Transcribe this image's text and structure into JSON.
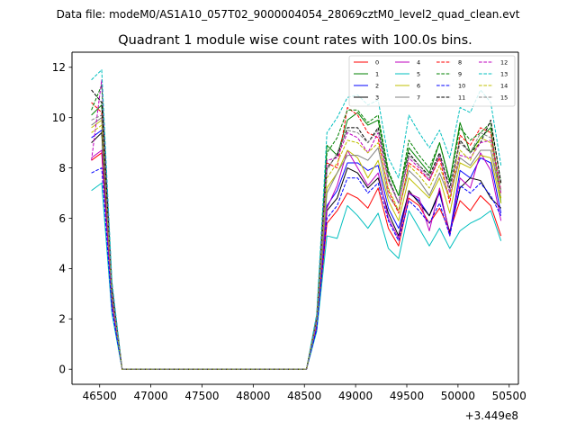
{
  "page": {
    "suptitle": "Data file: modeM0/AS1A10_057T02_9000004054_28069cztM0_level2_quad_clean.evt"
  },
  "chart_data": {
    "type": "line",
    "title": "Quadrant 1 module wise count rates with 100.0s bins.",
    "xlabel": "",
    "ylabel": "",
    "x_offset_label": "+3.449e8",
    "xlim": [
      46230,
      50590
    ],
    "ylim": [
      -0.6,
      12.6
    ],
    "x_ticks": [
      46500,
      47000,
      47500,
      48000,
      48500,
      49000,
      49500,
      50000,
      50500
    ],
    "y_ticks": [
      0,
      2,
      4,
      6,
      8,
      10,
      12
    ],
    "grid": false,
    "legend_position": "top-right",
    "legend_columns": 4,
    "x": [
      46420,
      46520,
      46620,
      46720,
      46820,
      46920,
      47020,
      47120,
      47220,
      47320,
      47420,
      47520,
      47620,
      47720,
      47820,
      47920,
      48020,
      48120,
      48220,
      48320,
      48420,
      48520,
      48620,
      48720,
      48820,
      48920,
      49020,
      49120,
      49220,
      49320,
      49420,
      49520,
      49620,
      49720,
      49820,
      49920,
      50020,
      50120,
      50220,
      50320,
      50420
    ],
    "series": [
      {
        "name": "0",
        "color": "#ff0000",
        "dash": "solid",
        "values": [
          8.3,
          8.6,
          2.6,
          0,
          0,
          0,
          0,
          0,
          0,
          0,
          0,
          0,
          0,
          0,
          0,
          0,
          0,
          0,
          0,
          0,
          0,
          0,
          1.6,
          5.8,
          6.3,
          7.0,
          6.8,
          6.4,
          7.2,
          5.6,
          4.9,
          6.8,
          6.5,
          5.8,
          6.4,
          5.5,
          6.7,
          6.3,
          6.9,
          6.5,
          5.3
        ]
      },
      {
        "name": "1",
        "color": "#008000",
        "dash": "solid",
        "values": [
          10.1,
          10.5,
          3.1,
          0,
          0,
          0,
          0,
          0,
          0,
          0,
          0,
          0,
          0,
          0,
          0,
          0,
          0,
          0,
          0,
          0,
          0,
          0,
          2.0,
          8.9,
          8.5,
          9.9,
          10.2,
          9.7,
          9.9,
          7.8,
          6.9,
          8.8,
          8.3,
          7.8,
          9.0,
          7.5,
          9.8,
          8.6,
          9.2,
          9.6,
          6.6
        ]
      },
      {
        "name": "2",
        "color": "#0000ff",
        "dash": "solid",
        "values": [
          9.2,
          9.5,
          2.8,
          0,
          0,
          0,
          0,
          0,
          0,
          0,
          0,
          0,
          0,
          0,
          0,
          0,
          0,
          0,
          0,
          0,
          0,
          0,
          1.8,
          6.5,
          7.1,
          8.2,
          8.2,
          7.9,
          8.1,
          6.4,
          5.6,
          7.0,
          6.7,
          6.1,
          7.0,
          5.4,
          7.9,
          7.6,
          8.4,
          8.2,
          6.2
        ]
      },
      {
        "name": "3",
        "color": "#000000",
        "dash": "solid",
        "values": [
          9.0,
          9.4,
          2.7,
          0,
          0,
          0,
          0,
          0,
          0,
          0,
          0,
          0,
          0,
          0,
          0,
          0,
          0,
          0,
          0,
          0,
          0,
          0,
          1.7,
          6.3,
          6.8,
          8.0,
          7.8,
          7.2,
          7.6,
          6.2,
          5.3,
          7.1,
          6.6,
          6.1,
          7.1,
          5.4,
          7.2,
          7.6,
          7.5,
          6.8,
          6.4
        ]
      },
      {
        "name": "4",
        "color": "#bf00bf",
        "dash": "solid",
        "values": [
          8.4,
          8.7,
          2.6,
          0,
          0,
          0,
          0,
          0,
          0,
          0,
          0,
          0,
          0,
          0,
          0,
          0,
          0,
          0,
          0,
          0,
          0,
          0,
          1.7,
          6.4,
          7.3,
          8.7,
          8.0,
          7.3,
          7.8,
          6.0,
          5.2,
          7.0,
          6.8,
          5.5,
          7.2,
          5.3,
          7.6,
          7.2,
          8.6,
          7.9,
          5.9
        ]
      },
      {
        "name": "5",
        "color": "#00bfbf",
        "dash": "solid",
        "values": [
          7.1,
          7.4,
          2.2,
          0,
          0,
          0,
          0,
          0,
          0,
          0,
          0,
          0,
          0,
          0,
          0,
          0,
          0,
          0,
          0,
          0,
          0,
          0,
          1.5,
          5.3,
          5.2,
          6.5,
          6.1,
          5.6,
          6.2,
          4.8,
          4.4,
          6.3,
          5.6,
          4.9,
          5.6,
          4.8,
          5.5,
          5.8,
          6.0,
          6.3,
          5.1
        ]
      },
      {
        "name": "6",
        "color": "#bfbf00",
        "dash": "solid",
        "values": [
          9.6,
          9.9,
          3.0,
          0,
          0,
          0,
          0,
          0,
          0,
          0,
          0,
          0,
          0,
          0,
          0,
          0,
          0,
          0,
          0,
          0,
          0,
          0,
          1.9,
          7.2,
          7.8,
          8.7,
          8.4,
          7.6,
          8.3,
          6.7,
          5.9,
          7.6,
          7.2,
          6.8,
          7.6,
          6.2,
          8.2,
          8.0,
          8.5,
          8.4,
          6.6
        ]
      },
      {
        "name": "7",
        "color": "#808080",
        "dash": "solid",
        "values": [
          9.7,
          10.0,
          3.0,
          0,
          0,
          0,
          0,
          0,
          0,
          0,
          0,
          0,
          0,
          0,
          0,
          0,
          0,
          0,
          0,
          0,
          0,
          0,
          1.9,
          7.0,
          7.8,
          8.5,
          8.5,
          8.3,
          8.8,
          6.9,
          6.3,
          7.9,
          7.5,
          6.9,
          7.8,
          6.8,
          8.4,
          8.1,
          8.7,
          8.7,
          6.8
        ]
      },
      {
        "name": "8",
        "color": "#ff0000",
        "dash": "dashed",
        "values": [
          10.6,
          10.2,
          3.1,
          0,
          0,
          0,
          0,
          0,
          0,
          0,
          0,
          0,
          0,
          0,
          0,
          0,
          0,
          0,
          0,
          0,
          0,
          0,
          2.0,
          8.2,
          8.0,
          10.4,
          10.1,
          9.4,
          9.2,
          7.1,
          6.2,
          8.2,
          7.9,
          7.5,
          8.4,
          6.6,
          9.3,
          8.9,
          9.6,
          9.4,
          7.1
        ]
      },
      {
        "name": "9",
        "color": "#008000",
        "dash": "dashed",
        "values": [
          10.3,
          11.3,
          3.3,
          0,
          0,
          0,
          0,
          0,
          0,
          0,
          0,
          0,
          0,
          0,
          0,
          0,
          0,
          0,
          0,
          0,
          0,
          0,
          2.1,
          8.6,
          9.2,
          10.3,
          10.3,
          9.8,
          10.1,
          7.9,
          6.9,
          9.1,
          8.5,
          8.0,
          9.0,
          7.4,
          9.6,
          9.1,
          9.4,
          9.8,
          7.4
        ]
      },
      {
        "name": "10",
        "color": "#0000ff",
        "dash": "dashed",
        "values": [
          7.8,
          8.0,
          2.4,
          0,
          0,
          0,
          0,
          0,
          0,
          0,
          0,
          0,
          0,
          0,
          0,
          0,
          0,
          0,
          0,
          0,
          0,
          0,
          1.6,
          6.0,
          6.5,
          7.6,
          7.6,
          7.0,
          7.4,
          5.9,
          5.1,
          6.7,
          6.3,
          5.8,
          6.6,
          5.3,
          7.3,
          7.0,
          7.4,
          6.9,
          6.1
        ]
      },
      {
        "name": "11",
        "color": "#000000",
        "dash": "dashed",
        "values": [
          11.1,
          10.6,
          3.2,
          0,
          0,
          0,
          0,
          0,
          0,
          0,
          0,
          0,
          0,
          0,
          0,
          0,
          0,
          0,
          0,
          0,
          0,
          0,
          2.0,
          8.0,
          8.5,
          9.6,
          9.6,
          9.0,
          9.6,
          7.6,
          6.6,
          8.6,
          8.1,
          7.7,
          8.6,
          7.2,
          9.1,
          8.6,
          9.0,
          9.9,
          7.4
        ]
      },
      {
        "name": "12",
        "color": "#bf00bf",
        "dash": "dashed",
        "values": [
          8.3,
          11.5,
          3.4,
          0,
          0,
          0,
          0,
          0,
          0,
          0,
          0,
          0,
          0,
          0,
          0,
          0,
          0,
          0,
          0,
          0,
          0,
          0,
          2.1,
          8.3,
          8.4,
          9.4,
          9.2,
          8.6,
          9.4,
          7.5,
          6.6,
          8.4,
          8.0,
          7.5,
          8.5,
          7.0,
          8.5,
          8.4,
          9.0,
          9.1,
          7.0
        ]
      },
      {
        "name": "13",
        "color": "#00bfbf",
        "dash": "dashed",
        "values": [
          11.5,
          11.9,
          3.5,
          0,
          0,
          0,
          0,
          0,
          0,
          0,
          0,
          0,
          0,
          0,
          0,
          0,
          0,
          0,
          0,
          0,
          0,
          0,
          2.2,
          9.4,
          10.0,
          10.8,
          10.9,
          10.5,
          10.7,
          8.4,
          7.6,
          10.1,
          9.4,
          8.8,
          9.5,
          8.4,
          10.4,
          10.2,
          11.1,
          10.6,
          8.1
        ]
      },
      {
        "name": "14",
        "color": "#bfbf00",
        "dash": "dashed",
        "values": [
          9.4,
          9.7,
          2.9,
          0,
          0,
          0,
          0,
          0,
          0,
          0,
          0,
          0,
          0,
          0,
          0,
          0,
          0,
          0,
          0,
          0,
          0,
          0,
          1.9,
          7.6,
          8.2,
          9.1,
          9.0,
          8.6,
          9.0,
          7.2,
          6.3,
          8.1,
          7.7,
          7.2,
          8.1,
          6.8,
          8.7,
          8.3,
          9.2,
          9.0,
          6.8
        ]
      },
      {
        "name": "15",
        "color": "#808080",
        "dash": "dashed",
        "values": [
          9.9,
          10.1,
          3.0,
          0,
          0,
          0,
          0,
          0,
          0,
          0,
          0,
          0,
          0,
          0,
          0,
          0,
          0,
          0,
          0,
          0,
          0,
          0,
          1.9,
          7.9,
          8.6,
          9.5,
          9.4,
          9.0,
          9.5,
          7.5,
          6.6,
          8.5,
          8.1,
          7.6,
          8.5,
          7.1,
          9.0,
          8.6,
          9.4,
          9.2,
          7.1
        ]
      }
    ]
  }
}
